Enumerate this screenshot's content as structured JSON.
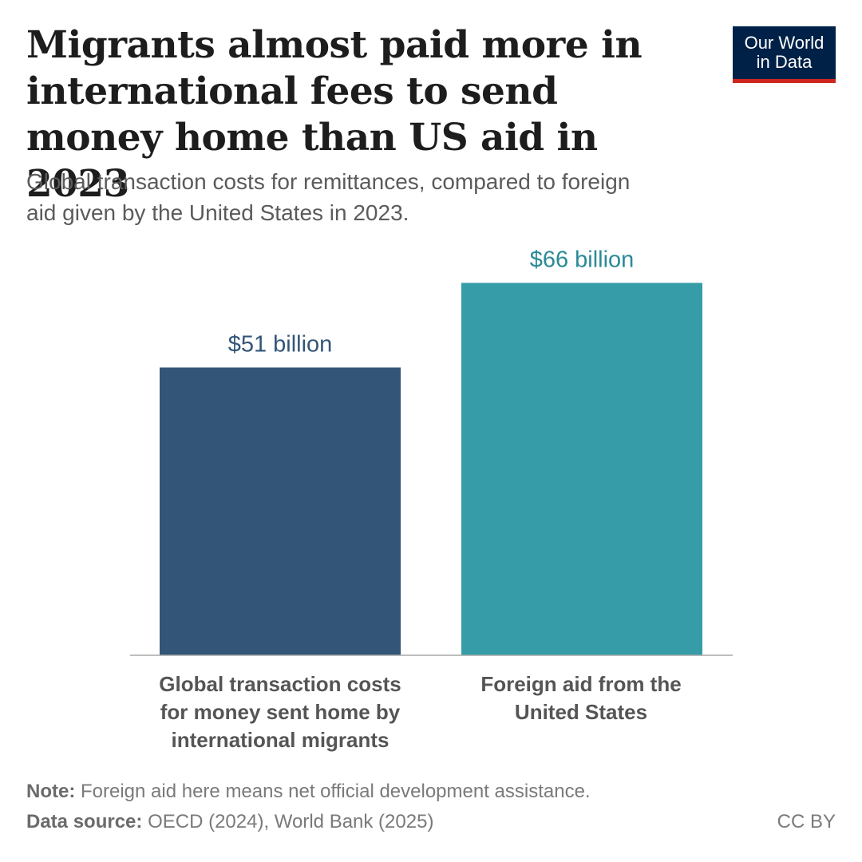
{
  "header": {
    "title": "Migrants almost paid more in international fees to send money home than US aid in 2023",
    "subtitle": "Global transaction costs for remittances, compared to foreign aid given by the United States in 2023."
  },
  "logo": {
    "line1": "Our World",
    "line2": "in Data"
  },
  "chart_data": {
    "type": "bar",
    "title": "Migrants almost paid more in international fees to send money home than US aid in 2023",
    "subtitle": "Global transaction costs for remittances, compared to foreign aid given by the United States in 2023.",
    "categories": [
      "Global transaction costs for money sent home by international migrants",
      "Foreign aid from the United States"
    ],
    "values": [
      51,
      66
    ],
    "value_labels": [
      "$51 billion",
      "$66 billion"
    ],
    "units": "billion US dollars",
    "colors": [
      "#325578",
      "#359ca8"
    ],
    "xlabel": "",
    "ylabel": "",
    "ylim": [
      0,
      72
    ],
    "grid": false
  },
  "footer": {
    "note_label": "Note:",
    "note_text": "Foreign aid here means net official development assistance.",
    "source_label": "Data source:",
    "source_text": "OECD (2024), World Bank (2025)",
    "license": "CC BY"
  }
}
